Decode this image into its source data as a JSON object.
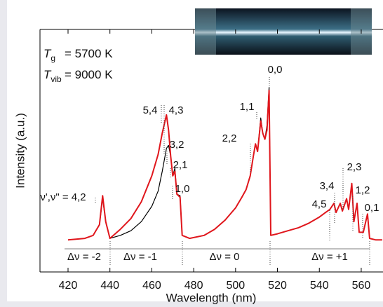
{
  "chart_data": {
    "type": "line",
    "xlabel": "Wavelength (nm)",
    "ylabel": "Intensity (a.u.)",
    "xlim": [
      406.6,
      570.4
    ],
    "ylim": [
      -0.21,
      1.38
    ],
    "xticks": [
      420,
      440,
      460,
      480,
      500,
      520,
      540,
      560
    ],
    "x": [
      420,
      428,
      432,
      435,
      436.5,
      438,
      440,
      445,
      450,
      455,
      460,
      463,
      465,
      467,
      468,
      469,
      470,
      471,
      472,
      473.5,
      474.5,
      478,
      485,
      490,
      495,
      500,
      503,
      505,
      507,
      508.5,
      509.5,
      510.5,
      512,
      513,
      514,
      515,
      516,
      516.8,
      520,
      525,
      530,
      535,
      540,
      543,
      545,
      547,
      548,
      550,
      551,
      553,
      554,
      555.5,
      556.5,
      558,
      559,
      561,
      563,
      564,
      567,
      570
    ],
    "series": [
      {
        "color": "#000000",
        "values": [
          0,
          0.01,
          0.03,
          0.1,
          0.27,
          0.12,
          0.01,
          0.03,
          0.06,
          0.12,
          0.22,
          0.32,
          0.45,
          0.6,
          0.62,
          0.55,
          0.42,
          0.47,
          0.3,
          0.29,
          0.03,
          0.01,
          0.03,
          0.07,
          0.13,
          0.21,
          0.28,
          0.33,
          0.42,
          0.55,
          0.63,
          0.58,
          0.8,
          0.7,
          0.66,
          0.75,
          1.0,
          0.03,
          0.04,
          0.06,
          0.08,
          0.11,
          0.15,
          0.18,
          0.2,
          0.24,
          0.18,
          0.24,
          0.19,
          0.27,
          0.2,
          0.37,
          0.12,
          0.24,
          0.05,
          0.05,
          0.17,
          0.01,
          0,
          0
        ]
      },
      {
        "color": "#e0161c",
        "values": [
          0,
          0.01,
          0.03,
          0.1,
          0.29,
          0.12,
          0.01,
          0.07,
          0.14,
          0.25,
          0.42,
          0.56,
          0.7,
          0.82,
          0.72,
          0.55,
          0.42,
          0.45,
          0.3,
          0.28,
          0.03,
          0.01,
          0.03,
          0.07,
          0.13,
          0.21,
          0.28,
          0.33,
          0.42,
          0.55,
          0.63,
          0.58,
          0.78,
          0.7,
          0.66,
          0.72,
          0.98,
          0.03,
          0.04,
          0.06,
          0.08,
          0.11,
          0.15,
          0.18,
          0.2,
          0.24,
          0.18,
          0.24,
          0.19,
          0.27,
          0.2,
          0.37,
          0.12,
          0.24,
          0.05,
          0.05,
          0.17,
          0.01,
          0,
          0
        ]
      }
    ],
    "conditions": [
      {
        "symbol": "T",
        "subscript": "g",
        "text": "= 5700 K"
      },
      {
        "symbol": "T",
        "subscript": "vib",
        "text": "= 9000 K"
      }
    ],
    "annotations": [
      "0,0",
      "1,1",
      "2,2",
      "5,4",
      "4,3",
      "3,2",
      "2,1",
      "1,0",
      "ν',ν\" = 4,2",
      "4,5",
      "3,4",
      "2,3",
      "1,2",
      "0,1"
    ],
    "band_labels": [
      "Δν = -2",
      "Δν = -1",
      "Δν = 0",
      "Δν = +1"
    ]
  }
}
